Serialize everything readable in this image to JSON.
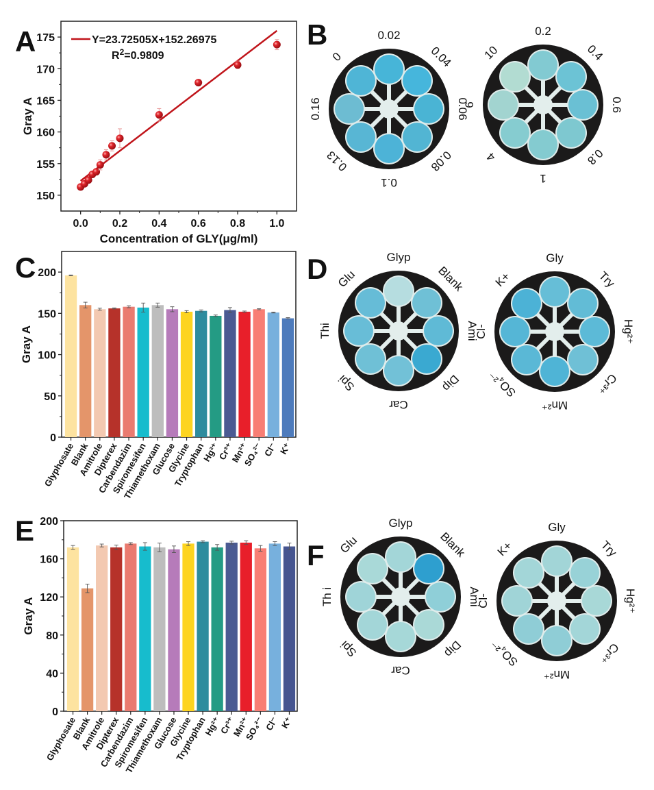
{
  "panels": {
    "A": "A",
    "B": "B",
    "C": "C",
    "D": "D",
    "E": "E",
    "F": "F"
  },
  "chart_data": [
    {
      "id": "A",
      "type": "scatter",
      "title": "",
      "xlabel": "Concentration of GLY(μg/ml)",
      "ylabel": "Gray A",
      "xlim": [
        -0.1,
        1.1
      ],
      "ylim": [
        147.5,
        177.5
      ],
      "xticks": [
        "0.0",
        "0.2",
        "0.4",
        "0.6",
        "0.8",
        "1.0"
      ],
      "xtick_values": [
        0.0,
        0.2,
        0.4,
        0.6,
        0.8,
        1.0
      ],
      "yticks": [
        "150",
        "155",
        "160",
        "165",
        "170",
        "175"
      ],
      "ytick_values": [
        150,
        155,
        160,
        165,
        170,
        175
      ],
      "legend": {
        "equation": "Y=23.72505X+152.26975",
        "r2_prefix": "R",
        "r2_sup": "2",
        "r2_value": "=0.9809",
        "placement": "top-left"
      },
      "fit": {
        "slope": 23.72505,
        "intercept": 152.26975,
        "x_range": [
          0.0,
          1.0
        ]
      },
      "points": [
        {
          "x": 0.0,
          "y": 151.3,
          "err": 0.3
        },
        {
          "x": 0.02,
          "y": 151.8,
          "err": 0.3
        },
        {
          "x": 0.04,
          "y": 152.4,
          "err": 0.4
        },
        {
          "x": 0.06,
          "y": 153.3,
          "err": 0.4
        },
        {
          "x": 0.08,
          "y": 153.7,
          "err": 0.3
        },
        {
          "x": 0.1,
          "y": 154.8,
          "err": 0.8
        },
        {
          "x": 0.13,
          "y": 156.4,
          "err": 0.8
        },
        {
          "x": 0.16,
          "y": 157.8,
          "err": 0.8
        },
        {
          "x": 0.2,
          "y": 159.0,
          "err": 1.5
        },
        {
          "x": 0.4,
          "y": 162.7,
          "err": 1.0
        },
        {
          "x": 0.6,
          "y": 167.8,
          "err": 0.5
        },
        {
          "x": 0.8,
          "y": 170.6,
          "err": 0.6
        },
        {
          "x": 1.0,
          "y": 173.8,
          "err": 0.8
        }
      ],
      "color": "#c0141a"
    },
    {
      "id": "C",
      "type": "bar",
      "title": "",
      "xlabel": "",
      "ylabel": "Gray A",
      "ylim": [
        0,
        225
      ],
      "yticks": [
        "0",
        "50",
        "100",
        "150",
        "200"
      ],
      "ytick_values": [
        0,
        50,
        100,
        150,
        200
      ],
      "categories": [
        "Glyphosate",
        "Blank",
        "Amitrole",
        "Dipterex",
        "Carbendazim",
        "Spiromesifen",
        "Thiamethoxam",
        "Glucose",
        "Glycine",
        "Tryptophan",
        "Hg²⁺",
        "Cr³⁺",
        "Mn²⁺",
        "SO₄²⁻",
        "Cl⁻",
        "K⁺"
      ],
      "values": [
        196,
        160,
        155,
        156,
        158,
        157,
        160,
        155,
        152,
        153,
        147,
        154,
        152,
        155,
        151,
        144
      ],
      "errors": [
        0.5,
        3.5,
        1.2,
        0.6,
        1.2,
        5.5,
        2.5,
        3.0,
        1.3,
        1.2,
        1.0,
        3.0,
        0.8,
        0.6,
        0.5,
        0.8
      ]
    },
    {
      "id": "E",
      "type": "bar",
      "title": "",
      "xlabel": "",
      "ylabel": "Gray A",
      "ylim": [
        0,
        200
      ],
      "yticks": [
        "0",
        "40",
        "80",
        "120",
        "160",
        "200"
      ],
      "ytick_values": [
        0,
        40,
        80,
        120,
        160,
        200
      ],
      "categories": [
        "Glyphosate",
        "Blank",
        "Amitrole",
        "Dipterex",
        "Carbendazim",
        "Spiromesifen",
        "Thiamethoxam",
        "Glucose",
        "Glycine",
        "Tryptophan",
        "Hg²⁺",
        "Cr³⁺",
        "Mn²⁺",
        "SO₄²⁻",
        "Cl⁻",
        "K⁺"
      ],
      "values": [
        172,
        129,
        174,
        172,
        176,
        173,
        172,
        170,
        176,
        178,
        172,
        177,
        177,
        171,
        176,
        173
      ],
      "errors": [
        2.0,
        4.5,
        1.5,
        2.5,
        1.0,
        4.0,
        4.5,
        3.5,
        2.0,
        1.0,
        3.0,
        1.5,
        2.0,
        3.0,
        2.0,
        3.5
      ]
    }
  ],
  "bar_colors": [
    "#fde3a0",
    "#e4956a",
    "#f3c9b1",
    "#b6322a",
    "#ea7b70",
    "#17bccd",
    "#bdbdbd",
    "#b67bba",
    "#fdd420",
    "#2e8c9e",
    "#249b84",
    "#4b5a92",
    "#e81f2a",
    "#f87e74",
    "#77b0dd",
    "#4e7bbc"
  ],
  "bar_colors_E_last": "#465590",
  "discs": {
    "B": [
      {
        "labels": [
          "0.02",
          "0.04",
          "0.06",
          "0.08",
          "0.1",
          "0.13",
          "0.16",
          "0"
        ],
        "tints": [
          "#47b5d8",
          "#46b6dc",
          "#4ab4d4",
          "#52b5d3",
          "#4db3d7",
          "#58b6d4",
          "#6dbcd2",
          "#4fb5d6"
        ]
      },
      {
        "labels": [
          "0.2",
          "0.4",
          "0.6",
          "0.8",
          "1",
          "4",
          "6",
          "10"
        ],
        "tints": [
          "#82cad2",
          "#6cc3d5",
          "#6ac0d4",
          "#7ec8d0",
          "#84cbd0",
          "#86ccd0",
          "#a2d4d0",
          "#b2dcd2"
        ]
      }
    ],
    "D": [
      {
        "labels": [
          "Glyp",
          "Blank",
          "Ami",
          "Dip",
          "Car",
          "Spi",
          "Thi",
          "Glu"
        ],
        "tints": [
          "#b6dde0",
          "#6fc0d6",
          "#5fbad6",
          "#3aa9d1",
          "#72c1d7",
          "#6fc0d6",
          "#68bdd7",
          "#66bcd7"
        ]
      },
      {
        "labels": [
          "Gly",
          "Try",
          "Hg²⁺",
          "Cr³⁺",
          "Mn²⁺",
          "SO₄²⁻",
          "Cl-",
          "K+"
        ],
        "tints": [
          "#66bed7",
          "#62bcd6",
          "#5cbad7",
          "#6fc0d6",
          "#4fb4d6",
          "#5ab8d6",
          "#55b6d6",
          "#4cb2d6"
        ]
      }
    ],
    "F": [
      {
        "labels": [
          "Glyp",
          "Blank",
          "Ami",
          "Dip",
          "Car",
          "Spi",
          "Th i",
          "Glu"
        ],
        "tints": [
          "#a3d6d8",
          "#2e9fcf",
          "#8fcfd8",
          "#aad9d7",
          "#a6d8d8",
          "#a3d6d8",
          "#9fd4d8",
          "#a9d9d8"
        ]
      },
      {
        "labels": [
          "Gly",
          "Try",
          "Hg²⁺",
          "Cr³⁺",
          "Mn²⁺",
          "SO₄²⁻",
          "Cl-",
          "K+"
        ],
        "tints": [
          "#a2d5d7",
          "#98d2d7",
          "#a8d8d7",
          "#a3d6d8",
          "#8fcdd6",
          "#8fcdd6",
          "#a0d4d7",
          "#a3d6d8"
        ]
      }
    ]
  }
}
